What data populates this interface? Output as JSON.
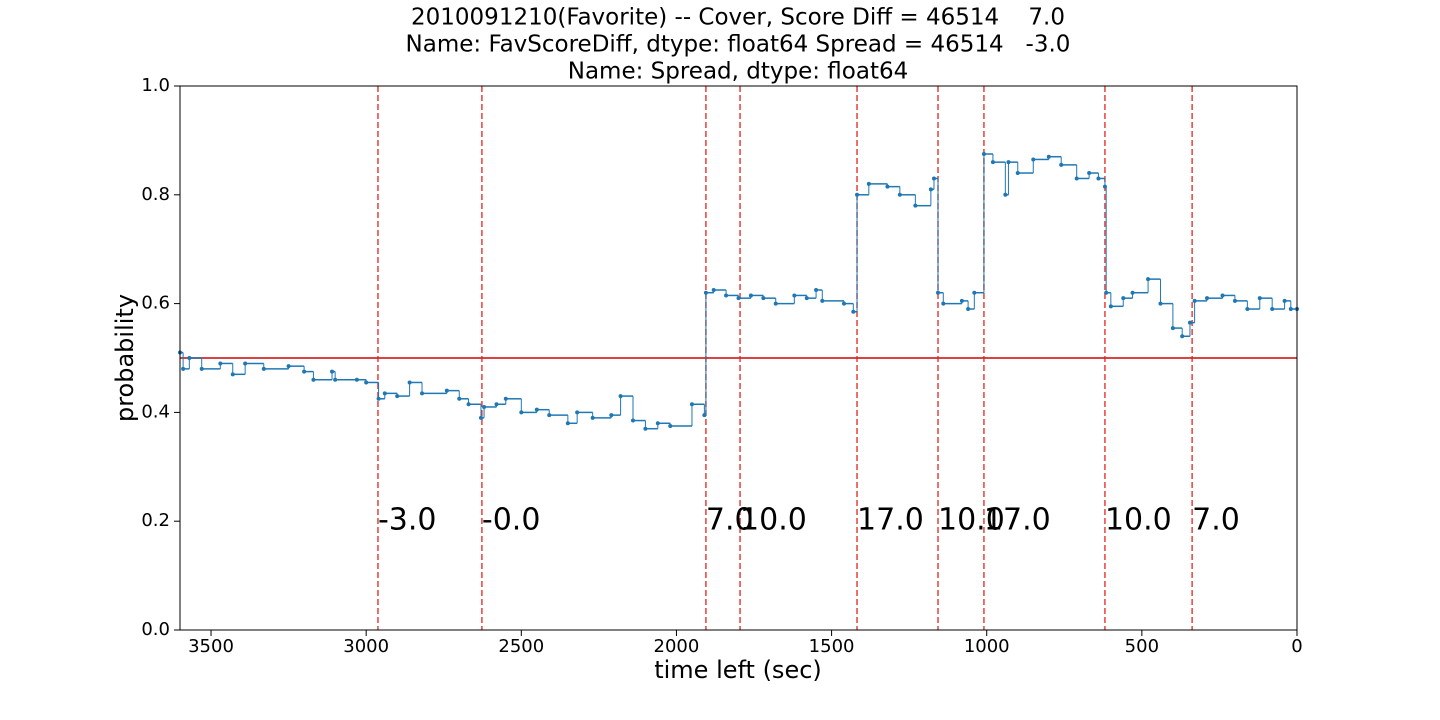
{
  "chart_data": {
    "type": "line",
    "drawstyle": "steps-post",
    "title_lines": [
      "2010091210(Favorite) -- Cover, Score Diff = 46514    7.0",
      "Name: FavScoreDiff, dtype: float64 Spread = 46514   -3.0",
      "Name: Spread, dtype: float64"
    ],
    "x_label": "time left (sec)",
    "y_label": "probability",
    "xlim": [
      3600,
      0
    ],
    "ylim": [
      0,
      1
    ],
    "xticks": [
      3500,
      3000,
      2500,
      2000,
      1500,
      1000,
      500,
      0
    ],
    "yticks": [
      {
        "value": 0,
        "label": "0.0"
      },
      {
        "value": 0.2,
        "label": "0.2"
      },
      {
        "value": 0.4,
        "label": "0.4"
      },
      {
        "value": 0.6,
        "label": "0.6"
      },
      {
        "value": 0.8,
        "label": "0.8"
      },
      {
        "value": 1,
        "label": "1.0"
      }
    ],
    "color": "#1f77b4",
    "x": [
      3600,
      3590,
      3570,
      3530,
      3470,
      3430,
      3390,
      3330,
      3250,
      3200,
      3170,
      3110,
      3100,
      3030,
      3000,
      2960,
      2940,
      2900,
      2860,
      2820,
      2740,
      2700,
      2670,
      2630,
      2620,
      2580,
      2550,
      2500,
      2450,
      2410,
      2350,
      2320,
      2270,
      2210,
      2180,
      2140,
      2100,
      2060,
      2020,
      1950,
      1910,
      1905,
      1880,
      1840,
      1800,
      1760,
      1720,
      1680,
      1620,
      1580,
      1550,
      1530,
      1460,
      1430,
      1418,
      1380,
      1320,
      1280,
      1230,
      1180,
      1170,
      1157,
      1140,
      1080,
      1060,
      1040,
      1009,
      980,
      940,
      930,
      900,
      850,
      800,
      760,
      710,
      670,
      640,
      619,
      615,
      600,
      560,
      530,
      480,
      440,
      400,
      370,
      345,
      330,
      290,
      240,
      200,
      160,
      120,
      80,
      40,
      20,
      0
    ],
    "values": [
      0.51,
      0.48,
      0.5,
      0.48,
      0.49,
      0.47,
      0.49,
      0.48,
      0.485,
      0.475,
      0.46,
      0.475,
      0.46,
      0.46,
      0.455,
      0.425,
      0.435,
      0.43,
      0.455,
      0.435,
      0.44,
      0.425,
      0.415,
      0.39,
      0.41,
      0.415,
      0.425,
      0.4,
      0.405,
      0.395,
      0.38,
      0.4,
      0.39,
      0.395,
      0.43,
      0.385,
      0.37,
      0.38,
      0.375,
      0.415,
      0.395,
      0.62,
      0.625,
      0.615,
      0.61,
      0.615,
      0.61,
      0.6,
      0.615,
      0.61,
      0.625,
      0.605,
      0.6,
      0.585,
      0.8,
      0.82,
      0.815,
      0.8,
      0.78,
      0.81,
      0.83,
      0.62,
      0.6,
      0.605,
      0.59,
      0.62,
      0.875,
      0.86,
      0.8,
      0.86,
      0.84,
      0.865,
      0.87,
      0.855,
      0.83,
      0.84,
      0.83,
      0.815,
      0.62,
      0.595,
      0.61,
      0.62,
      0.645,
      0.6,
      0.555,
      0.54,
      0.565,
      0.605,
      0.61,
      0.615,
      0.605,
      0.59,
      0.61,
      0.59,
      0.605,
      0.59,
      0.59
    ],
    "hline": {
      "y": 0.5,
      "color": "#d62728"
    },
    "vlines": {
      "color": "#e8403c",
      "x": [
        2962,
        2627,
        1905,
        1795,
        1418,
        1157,
        1009,
        619,
        338
      ]
    },
    "annotations": [
      {
        "x": 2962,
        "y": 0.2,
        "text": "-3.0"
      },
      {
        "x": 2627,
        "y": 0.2,
        "text": "-0.0"
      },
      {
        "x": 1905,
        "y": 0.2,
        "text": "7.0"
      },
      {
        "x": 1795,
        "y": 0.2,
        "text": "10.0"
      },
      {
        "x": 1418,
        "y": 0.2,
        "text": "17.0"
      },
      {
        "x": 1157,
        "y": 0.2,
        "text": "10.0"
      },
      {
        "x": 1009,
        "y": 0.2,
        "text": "17.0"
      },
      {
        "x": 619,
        "y": 0.2,
        "text": "10.0"
      },
      {
        "x": 338,
        "y": 0.2,
        "text": "7.0"
      }
    ]
  }
}
